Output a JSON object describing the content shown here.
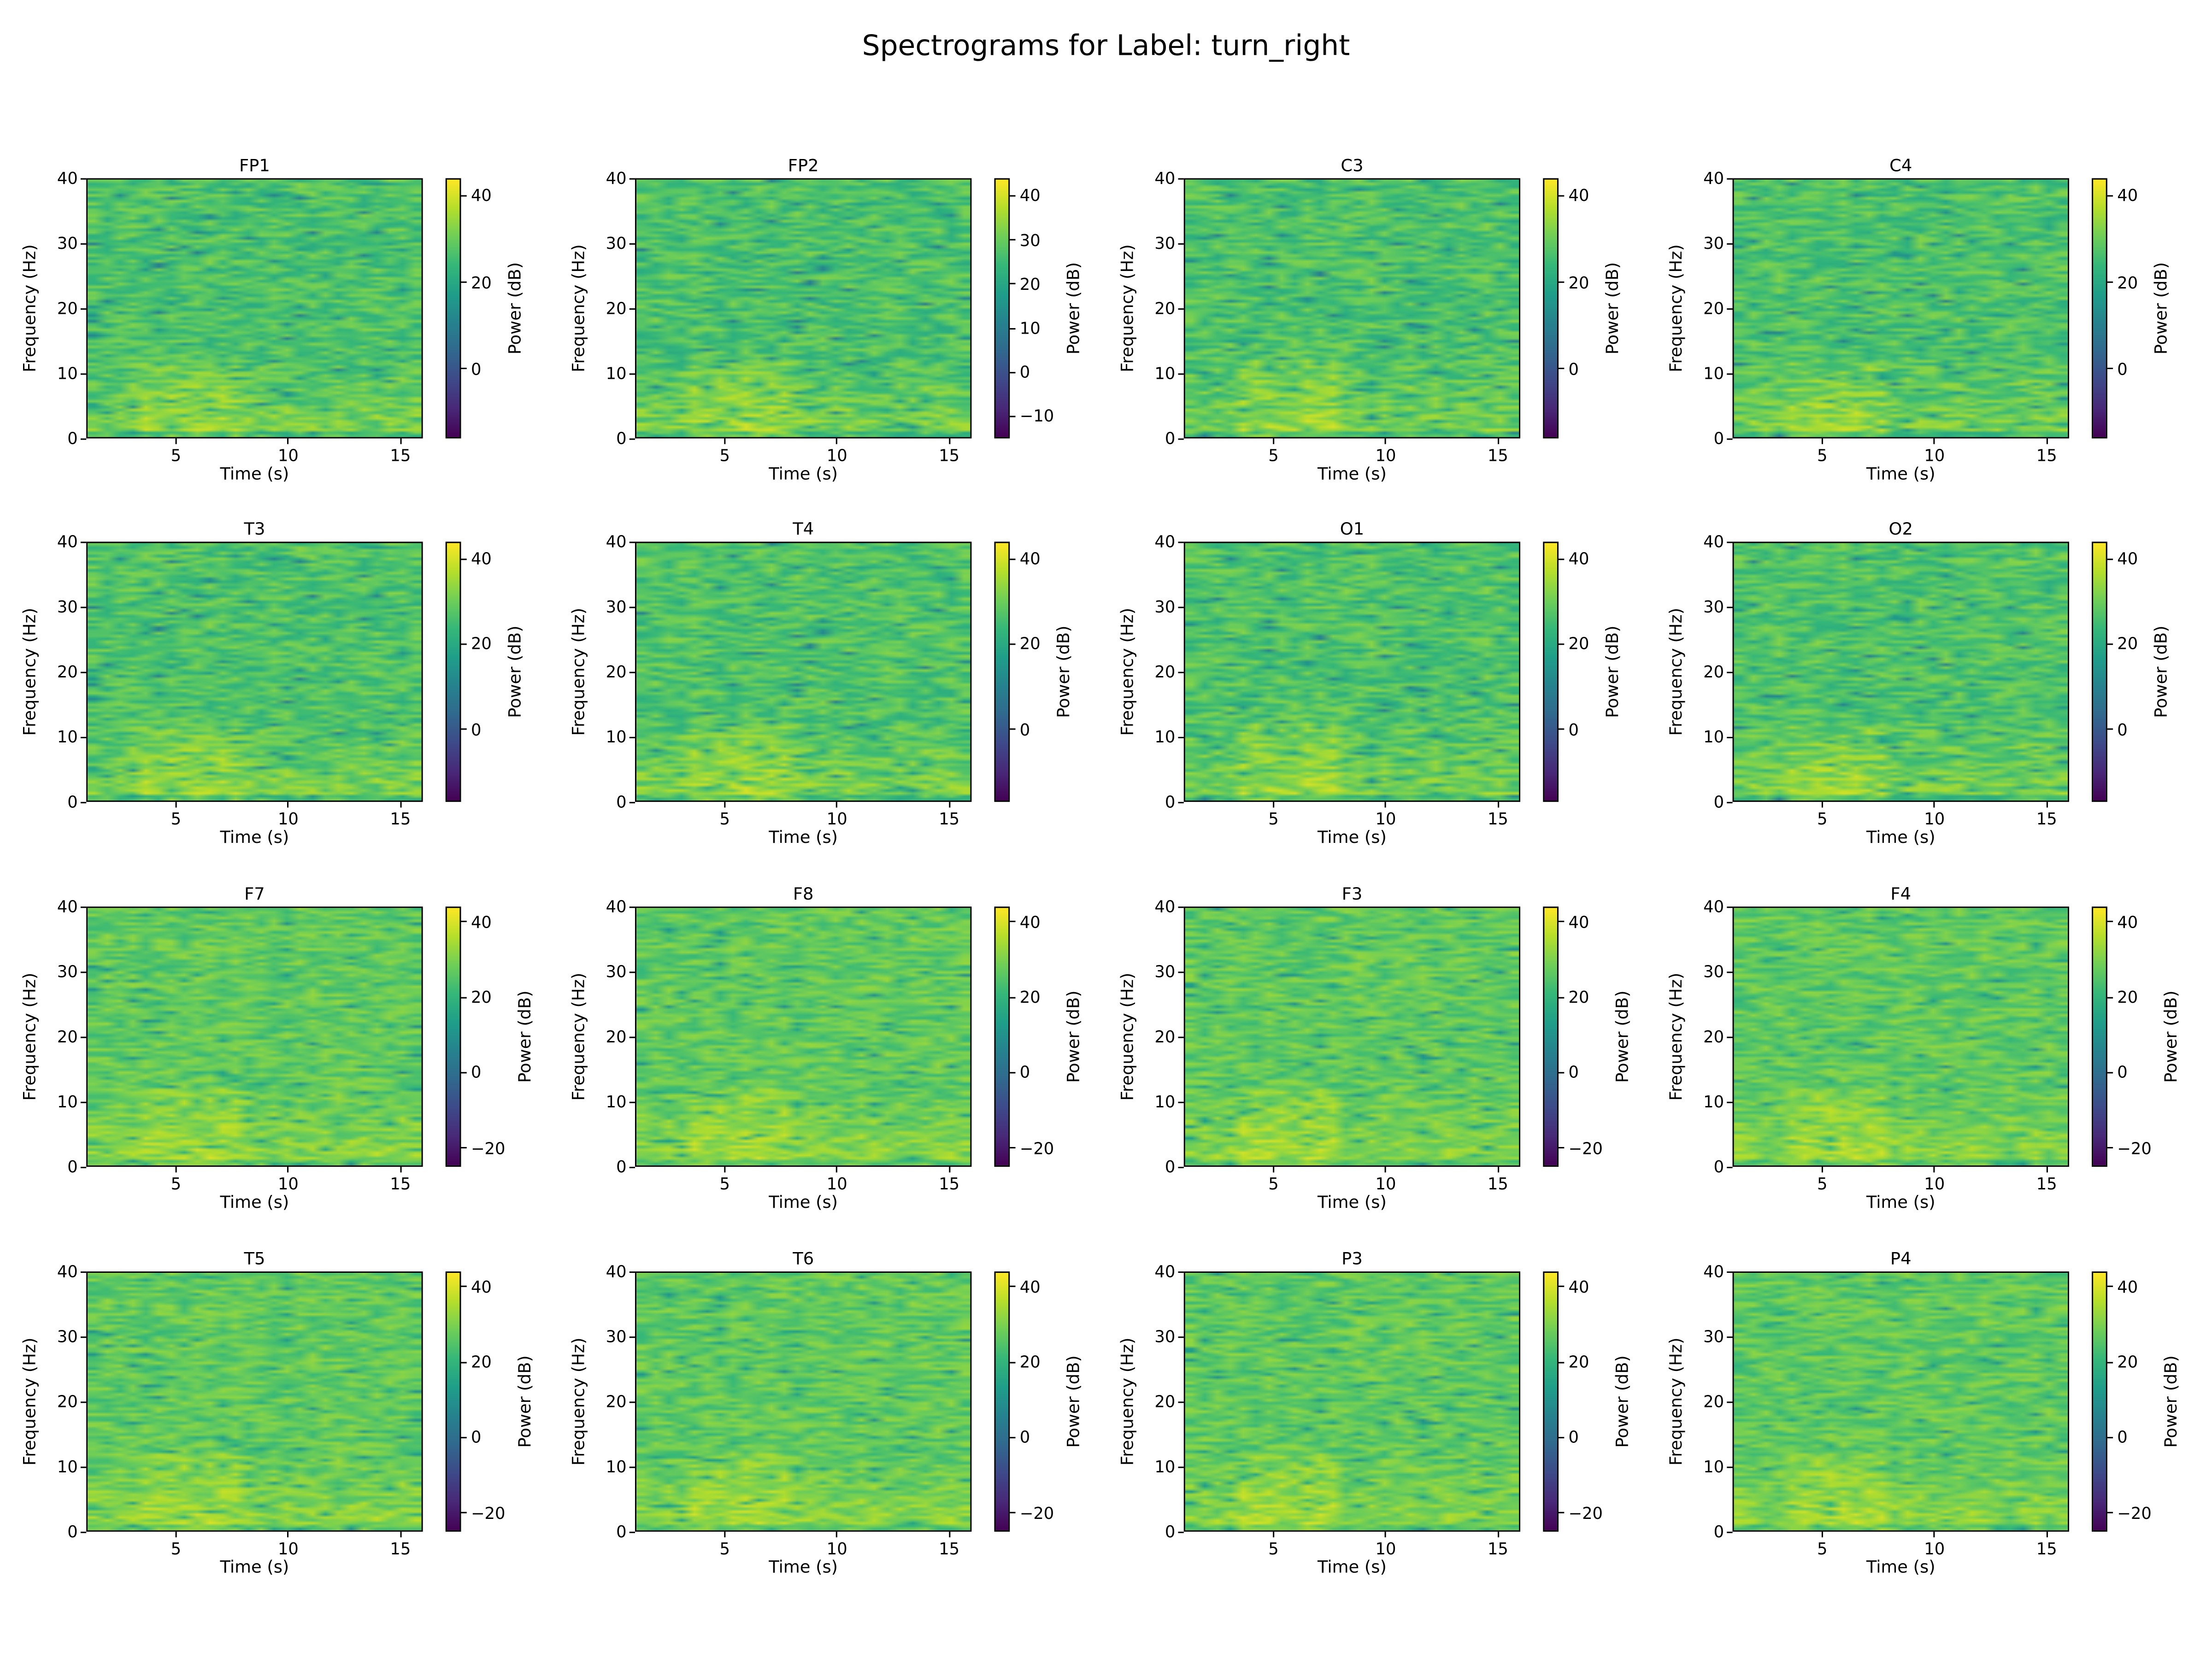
{
  "chart_data": {
    "type": "heatmap",
    "title": "Spectrograms for Label: turn_right",
    "colormap": "viridis",
    "panels": [
      {
        "title": "FP1",
        "xlabel": "Time (s)",
        "ylabel": "Frequency (Hz)",
        "cbar_label": "Power (dB)",
        "xlim": [
          1,
          16
        ],
        "ylim": [
          0,
          40
        ],
        "xticks": [
          5,
          10,
          15
        ],
        "yticks": [
          0,
          10,
          20,
          30,
          40
        ],
        "clim": [
          -16,
          44
        ],
        "cbar_ticks": [
          40,
          20,
          0
        ]
      },
      {
        "title": "FP2",
        "xlabel": "Time (s)",
        "ylabel": "Frequency (Hz)",
        "cbar_label": "Power (dB)",
        "xlim": [
          1,
          16
        ],
        "ylim": [
          0,
          40
        ],
        "xticks": [
          5,
          10,
          15
        ],
        "yticks": [
          0,
          10,
          20,
          30,
          40
        ],
        "clim": [
          -15,
          44
        ],
        "cbar_ticks": [
          40,
          30,
          20,
          10,
          0,
          -10
        ]
      },
      {
        "title": "C3",
        "xlabel": "Time (s)",
        "ylabel": "Frequency (Hz)",
        "cbar_label": "Power (dB)",
        "xlim": [
          1,
          16
        ],
        "ylim": [
          0,
          40
        ],
        "xticks": [
          5,
          10,
          15
        ],
        "yticks": [
          0,
          10,
          20,
          30,
          40
        ],
        "clim": [
          -16,
          44
        ],
        "cbar_ticks": [
          40,
          20,
          0
        ]
      },
      {
        "title": "C4",
        "xlabel": "Time (s)",
        "ylabel": "Frequency (Hz)",
        "cbar_label": "Power (dB)",
        "xlim": [
          1,
          16
        ],
        "ylim": [
          0,
          40
        ],
        "xticks": [
          5,
          10,
          15
        ],
        "yticks": [
          0,
          10,
          20,
          30,
          40
        ],
        "clim": [
          -16,
          44
        ],
        "cbar_ticks": [
          40,
          20,
          0
        ]
      },
      {
        "title": "T3",
        "xlabel": "Time (s)",
        "ylabel": "Frequency (Hz)",
        "cbar_label": "Power (dB)",
        "xlim": [
          1,
          16
        ],
        "ylim": [
          0,
          40
        ],
        "xticks": [
          5,
          10,
          15
        ],
        "yticks": [
          0,
          10,
          20,
          30,
          40
        ],
        "clim": [
          -17,
          44
        ],
        "cbar_ticks": [
          40,
          20,
          0
        ]
      },
      {
        "title": "T4",
        "xlabel": "Time (s)",
        "ylabel": "Frequency (Hz)",
        "cbar_label": "Power (dB)",
        "xlim": [
          1,
          16
        ],
        "ylim": [
          0,
          40
        ],
        "xticks": [
          5,
          10,
          15
        ],
        "yticks": [
          0,
          10,
          20,
          30,
          40
        ],
        "clim": [
          -17,
          44
        ],
        "cbar_ticks": [
          40,
          20,
          0
        ]
      },
      {
        "title": "O1",
        "xlabel": "Time (s)",
        "ylabel": "Frequency (Hz)",
        "cbar_label": "Power (dB)",
        "xlim": [
          1,
          16
        ],
        "ylim": [
          0,
          40
        ],
        "xticks": [
          5,
          10,
          15
        ],
        "yticks": [
          0,
          10,
          20,
          30,
          40
        ],
        "clim": [
          -17,
          44
        ],
        "cbar_ticks": [
          40,
          20,
          0
        ]
      },
      {
        "title": "O2",
        "xlabel": "Time (s)",
        "ylabel": "Frequency (Hz)",
        "cbar_label": "Power (dB)",
        "xlim": [
          1,
          16
        ],
        "ylim": [
          0,
          40
        ],
        "xticks": [
          5,
          10,
          15
        ],
        "yticks": [
          0,
          10,
          20,
          30,
          40
        ],
        "clim": [
          -17,
          44
        ],
        "cbar_ticks": [
          40,
          20,
          0
        ]
      },
      {
        "title": "F7",
        "xlabel": "Time (s)",
        "ylabel": "Frequency (Hz)",
        "cbar_label": "Power (dB)",
        "xlim": [
          1,
          16
        ],
        "ylim": [
          0,
          40
        ],
        "xticks": [
          5,
          10,
          15
        ],
        "yticks": [
          0,
          10,
          20,
          30,
          40
        ],
        "clim": [
          -25,
          44
        ],
        "cbar_ticks": [
          40,
          20,
          0,
          -20
        ]
      },
      {
        "title": "F8",
        "xlabel": "Time (s)",
        "ylabel": "Frequency (Hz)",
        "cbar_label": "Power (dB)",
        "xlim": [
          1,
          16
        ],
        "ylim": [
          0,
          40
        ],
        "xticks": [
          5,
          10,
          15
        ],
        "yticks": [
          0,
          10,
          20,
          30,
          40
        ],
        "clim": [
          -25,
          44
        ],
        "cbar_ticks": [
          40,
          20,
          0,
          -20
        ]
      },
      {
        "title": "F3",
        "xlabel": "Time (s)",
        "ylabel": "Frequency (Hz)",
        "cbar_label": "Power (dB)",
        "xlim": [
          1,
          16
        ],
        "ylim": [
          0,
          40
        ],
        "xticks": [
          5,
          10,
          15
        ],
        "yticks": [
          0,
          10,
          20,
          30,
          40
        ],
        "clim": [
          -25,
          44
        ],
        "cbar_ticks": [
          40,
          20,
          0,
          -20
        ]
      },
      {
        "title": "F4",
        "xlabel": "Time (s)",
        "ylabel": "Frequency (Hz)",
        "cbar_label": "Power (dB)",
        "xlim": [
          1,
          16
        ],
        "ylim": [
          0,
          40
        ],
        "xticks": [
          5,
          10,
          15
        ],
        "yticks": [
          0,
          10,
          20,
          30,
          40
        ],
        "clim": [
          -25,
          44
        ],
        "cbar_ticks": [
          40,
          20,
          0,
          -20
        ]
      },
      {
        "title": "T5",
        "xlabel": "Time (s)",
        "ylabel": "Frequency (Hz)",
        "cbar_label": "Power (dB)",
        "xlim": [
          1,
          16
        ],
        "ylim": [
          0,
          40
        ],
        "xticks": [
          5,
          10,
          15
        ],
        "yticks": [
          0,
          10,
          20,
          30,
          40
        ],
        "clim": [
          -25,
          44
        ],
        "cbar_ticks": [
          40,
          20,
          0,
          -20
        ]
      },
      {
        "title": "T6",
        "xlabel": "Time (s)",
        "ylabel": "Frequency (Hz)",
        "cbar_label": "Power (dB)",
        "xlim": [
          1,
          16
        ],
        "ylim": [
          0,
          40
        ],
        "xticks": [
          5,
          10,
          15
        ],
        "yticks": [
          0,
          10,
          20,
          30,
          40
        ],
        "clim": [
          -25,
          44
        ],
        "cbar_ticks": [
          40,
          20,
          0,
          -20
        ]
      },
      {
        "title": "P3",
        "xlabel": "Time (s)",
        "ylabel": "Frequency (Hz)",
        "cbar_label": "Power (dB)",
        "xlim": [
          1,
          16
        ],
        "ylim": [
          0,
          40
        ],
        "xticks": [
          5,
          10,
          15
        ],
        "yticks": [
          0,
          10,
          20,
          30,
          40
        ],
        "clim": [
          -25,
          44
        ],
        "cbar_ticks": [
          40,
          20,
          0,
          -20
        ]
      },
      {
        "title": "P4",
        "xlabel": "Time (s)",
        "ylabel": "Frequency (Hz)",
        "cbar_label": "Power (dB)",
        "xlim": [
          1,
          16
        ],
        "ylim": [
          0,
          40
        ],
        "xticks": [
          5,
          10,
          15
        ],
        "yticks": [
          0,
          10,
          20,
          30,
          40
        ],
        "clim": [
          -25,
          44
        ],
        "cbar_ticks": [
          40,
          20,
          0,
          -20
        ]
      }
    ]
  }
}
